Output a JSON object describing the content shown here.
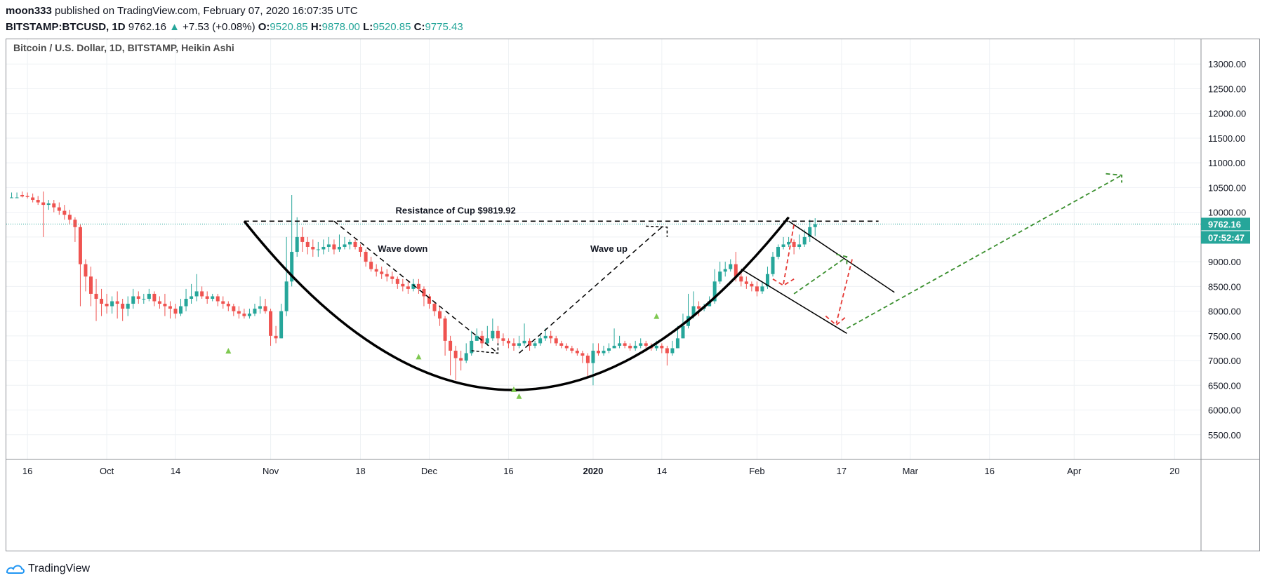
{
  "header": {
    "author": "moon333",
    "published": "published on TradingView.com, February 07, 2020 16:07:35 UTC",
    "symbol": "BITSTAMP:BTCUSD, 1D",
    "last": "9762.16",
    "change": "+7.53 (+0.08%)",
    "o_label": "O:",
    "o": "9520.85",
    "h_label": "H:",
    "h": "9878.00",
    "l_label": "L:",
    "l": "9520.85",
    "c_label": "C:",
    "c": "9775.43"
  },
  "footer": {
    "brand": "TradingView",
    "icon": "tradingview-logo-icon"
  },
  "colors": {
    "up": "#26a69a",
    "down": "#ef5350",
    "grid": "#eef1f4",
    "pattern_dark": "#000000",
    "projection_green": "#3a8f2e",
    "projection_red": "#e53935",
    "marker": "#7ec850",
    "last_price_bg": "#26a69a"
  },
  "chart_data": {
    "type": "candlestick",
    "title": "Bitcoin / U.S. Dollar, 1D, BITSTAMP, Heikin Ashi",
    "ylim": [
      5000,
      13500
    ],
    "y_ticks": [
      "13000.00",
      "12500.00",
      "12000.00",
      "11500.00",
      "11000.00",
      "10500.00",
      "10000.00",
      "9500.00",
      "9000.00",
      "8500.00",
      "8000.00",
      "7500.00",
      "7000.00",
      "6500.00",
      "6000.00",
      "5500.00"
    ],
    "x_ticks": [
      "16",
      "Oct",
      "14",
      "Nov",
      "18",
      "Dec",
      "16",
      "2020",
      "14",
      "Feb",
      "17",
      "Mar",
      "16",
      "Apr",
      "20"
    ],
    "x_range": [
      "2019-09-12",
      "2020-04-25"
    ],
    "x_tick_dates": [
      "2019-09-16",
      "2019-10-01",
      "2019-10-14",
      "2019-11-01",
      "2019-11-18",
      "2019-12-01",
      "2019-12-16",
      "2020-01-01",
      "2020-01-14",
      "2020-02-01",
      "2020-02-17",
      "2020-03-01",
      "2020-03-16",
      "2020-04-01",
      "2020-04-20"
    ],
    "last_price_label": "9762.16",
    "countdown_label": "07:52:47",
    "annotations": {
      "resistance": "Resistance of Cup $9819.92",
      "resistance_value": 9819.92,
      "wave_down": "Wave down",
      "wave_up": "Wave up"
    },
    "candles": [
      [
        10300,
        10300,
        10400,
        10300
      ],
      [
        10300,
        10300,
        10400,
        10300
      ],
      [
        10350,
        10320,
        10420,
        10300
      ],
      [
        10330,
        10310,
        10400,
        10280
      ],
      [
        10300,
        10250,
        10380,
        10200
      ],
      [
        10250,
        10200,
        10330,
        10150
      ],
      [
        10200,
        10150,
        10420,
        9500
      ],
      [
        10150,
        10180,
        10250,
        10050
      ],
      [
        10180,
        10100,
        10250,
        10000
      ],
      [
        10100,
        10030,
        10200,
        9950
      ],
      [
        10030,
        9950,
        10150,
        9850
      ],
      [
        9950,
        9850,
        10050,
        9750
      ],
      [
        9850,
        9700,
        9900,
        9400
      ],
      [
        9700,
        8950,
        9750,
        8100
      ],
      [
        8950,
        8700,
        9050,
        8400
      ],
      [
        8700,
        8350,
        8900,
        8100
      ],
      [
        8350,
        8250,
        8650,
        7800
      ],
      [
        8250,
        8150,
        8450,
        7900
      ],
      [
        8150,
        8100,
        8350,
        7950
      ],
      [
        8100,
        8200,
        8300,
        7950
      ],
      [
        8200,
        8150,
        8400,
        7850
      ],
      [
        8150,
        8050,
        8250,
        7800
      ],
      [
        8050,
        8150,
        8300,
        7900
      ],
      [
        8150,
        8300,
        8450,
        8050
      ],
      [
        8300,
        8250,
        8400,
        8150
      ],
      [
        8250,
        8250,
        8350,
        8150
      ],
      [
        8250,
        8350,
        8450,
        8200
      ],
      [
        8350,
        8200,
        8400,
        8100
      ],
      [
        8200,
        8150,
        8300,
        8050
      ],
      [
        8150,
        8100,
        8350,
        7900
      ],
      [
        8100,
        8050,
        8200,
        7850
      ],
      [
        8050,
        7950,
        8150,
        7850
      ],
      [
        7950,
        8100,
        8250,
        7900
      ],
      [
        8100,
        8250,
        8450,
        8000
      ],
      [
        8250,
        8300,
        8550,
        8150
      ],
      [
        8300,
        8400,
        8750,
        8200
      ],
      [
        8400,
        8300,
        8500,
        8250
      ],
      [
        8300,
        8250,
        8400,
        8150
      ],
      [
        8250,
        8300,
        8350,
        8200
      ],
      [
        8300,
        8200,
        8350,
        8100
      ],
      [
        8200,
        8150,
        8300,
        8050
      ],
      [
        8150,
        8100,
        8200,
        8000
      ],
      [
        8100,
        8000,
        8150,
        7900
      ],
      [
        8000,
        7950,
        8100,
        7850
      ],
      [
        7950,
        7900,
        8050,
        7850
      ],
      [
        7900,
        7950,
        8050,
        7850
      ],
      [
        7950,
        8050,
        8150,
        7900
      ],
      [
        8050,
        8100,
        8300,
        7950
      ],
      [
        8100,
        8000,
        8250,
        7950
      ],
      [
        8000,
        7500,
        8050,
        7300
      ],
      [
        7500,
        7450,
        7700,
        7350
      ],
      [
        7450,
        8000,
        8150,
        7450
      ],
      [
        8000,
        8600,
        9500,
        7900
      ],
      [
        8600,
        9200,
        10350,
        8500
      ],
      [
        9200,
        9500,
        9900,
        9100
      ],
      [
        9500,
        9400,
        9700,
        9200
      ],
      [
        9400,
        9300,
        9500,
        9150
      ],
      [
        9300,
        9250,
        9450,
        9100
      ],
      [
        9250,
        9250,
        9400,
        9100
      ],
      [
        9250,
        9300,
        9450,
        9150
      ],
      [
        9300,
        9350,
        9500,
        9200
      ],
      [
        9350,
        9250,
        9450,
        9150
      ],
      [
        9250,
        9300,
        9550,
        9200
      ],
      [
        9300,
        9350,
        9500,
        9250
      ],
      [
        9350,
        9400,
        9450,
        9250
      ],
      [
        9400,
        9300,
        9450,
        9250
      ],
      [
        9300,
        9200,
        9350,
        9100
      ],
      [
        9200,
        9000,
        9250,
        8900
      ],
      [
        9000,
        8850,
        9100,
        8800
      ],
      [
        8850,
        8800,
        8950,
        8700
      ],
      [
        8800,
        8750,
        8900,
        8650
      ],
      [
        8750,
        8700,
        8850,
        8600
      ],
      [
        8700,
        8650,
        8800,
        8550
      ],
      [
        8650,
        8550,
        8700,
        8450
      ],
      [
        8550,
        8500,
        8650,
        8400
      ],
      [
        8500,
        8450,
        8600,
        8350
      ],
      [
        8450,
        8550,
        8650,
        8400
      ],
      [
        8550,
        8450,
        8650,
        8350
      ],
      [
        8450,
        8300,
        8500,
        8100
      ],
      [
        8300,
        8150,
        8350,
        8050
      ],
      [
        8150,
        8000,
        8200,
        7900
      ],
      [
        8000,
        7850,
        8100,
        7700
      ],
      [
        7850,
        7400,
        7900,
        7100
      ],
      [
        7400,
        7200,
        7500,
        6700
      ],
      [
        7200,
        7050,
        7300,
        6600
      ],
      [
        7050,
        7000,
        7200,
        6800
      ],
      [
        7000,
        7150,
        7350,
        6950
      ],
      [
        7150,
        7400,
        7600,
        7100
      ],
      [
        7400,
        7500,
        7650,
        7400
      ],
      [
        7500,
        7350,
        7600,
        7250
      ],
      [
        7350,
        7450,
        7700,
        7300
      ],
      [
        7450,
        7600,
        7850,
        7400
      ],
      [
        7600,
        7450,
        7700,
        7350
      ],
      [
        7450,
        7400,
        7550,
        7300
      ],
      [
        7400,
        7350,
        7450,
        7250
      ],
      [
        7350,
        7300,
        7450,
        7200
      ],
      [
        7300,
        7350,
        7500,
        7250
      ],
      [
        7350,
        7400,
        7750,
        7300
      ],
      [
        7400,
        7300,
        7450,
        7200
      ],
      [
        7300,
        7350,
        7400,
        7250
      ],
      [
        7350,
        7450,
        7550,
        7300
      ],
      [
        7450,
        7500,
        7650,
        7400
      ],
      [
        7500,
        7450,
        7600,
        7350
      ],
      [
        7450,
        7350,
        7500,
        7300
      ],
      [
        7350,
        7300,
        7400,
        7250
      ],
      [
        7300,
        7250,
        7350,
        7200
      ],
      [
        7250,
        7200,
        7300,
        7150
      ],
      [
        7200,
        7150,
        7250,
        7100
      ],
      [
        7150,
        7100,
        7200,
        6950
      ],
      [
        7100,
        6950,
        7150,
        6650
      ],
      [
        6950,
        7200,
        7350,
        6500
      ],
      [
        7200,
        7150,
        7350,
        7100
      ],
      [
        7150,
        7200,
        7300,
        7100
      ],
      [
        7200,
        7250,
        7350,
        7150
      ],
      [
        7250,
        7300,
        7650,
        7250
      ],
      [
        7300,
        7350,
        7500,
        7250
      ],
      [
        7350,
        7300,
        7400,
        7250
      ],
      [
        7300,
        7250,
        7350,
        7200
      ],
      [
        7250,
        7300,
        7400,
        7200
      ],
      [
        7300,
        7350,
        7450,
        7250
      ],
      [
        7350,
        7300,
        7400,
        7250
      ],
      [
        7300,
        7250,
        7350,
        7200
      ],
      [
        7250,
        7300,
        7400,
        7200
      ],
      [
        7300,
        7250,
        7350,
        7150
      ],
      [
        7250,
        7150,
        7300,
        6900
      ],
      [
        7150,
        7250,
        7400,
        7100
      ],
      [
        7250,
        7450,
        7700,
        7250
      ],
      [
        7450,
        7700,
        7950,
        7450
      ],
      [
        7700,
        7900,
        8350,
        7650
      ],
      [
        7900,
        8100,
        8400,
        7850
      ],
      [
        8100,
        8050,
        8200,
        7900
      ],
      [
        8050,
        8100,
        8150,
        8000
      ],
      [
        8100,
        8200,
        8300,
        8100
      ],
      [
        8200,
        8600,
        8850,
        8150
      ],
      [
        8600,
        8800,
        9000,
        8550
      ],
      [
        8800,
        8850,
        9000,
        8700
      ],
      [
        8850,
        8950,
        9050,
        8800
      ],
      [
        8950,
        8700,
        9200,
        8600
      ],
      [
        8700,
        8600,
        8800,
        8500
      ],
      [
        8600,
        8550,
        8700,
        8450
      ],
      [
        8550,
        8500,
        8600,
        8400
      ],
      [
        8500,
        8400,
        8600,
        8300
      ],
      [
        8400,
        8500,
        8600,
        8350
      ],
      [
        8500,
        8750,
        8900,
        8450
      ],
      [
        8750,
        9100,
        9200,
        8700
      ],
      [
        9100,
        9300,
        9350,
        9050
      ],
      [
        9300,
        9350,
        9500,
        9250
      ],
      [
        9350,
        9400,
        9500,
        9300
      ],
      [
        9400,
        9300,
        9450,
        9150
      ],
      [
        9300,
        9350,
        9550,
        9250
      ],
      [
        9350,
        9500,
        9650,
        9300
      ],
      [
        9500,
        9700,
        9850,
        9400
      ],
      [
        9700,
        9760,
        9880,
        9520
      ]
    ]
  }
}
